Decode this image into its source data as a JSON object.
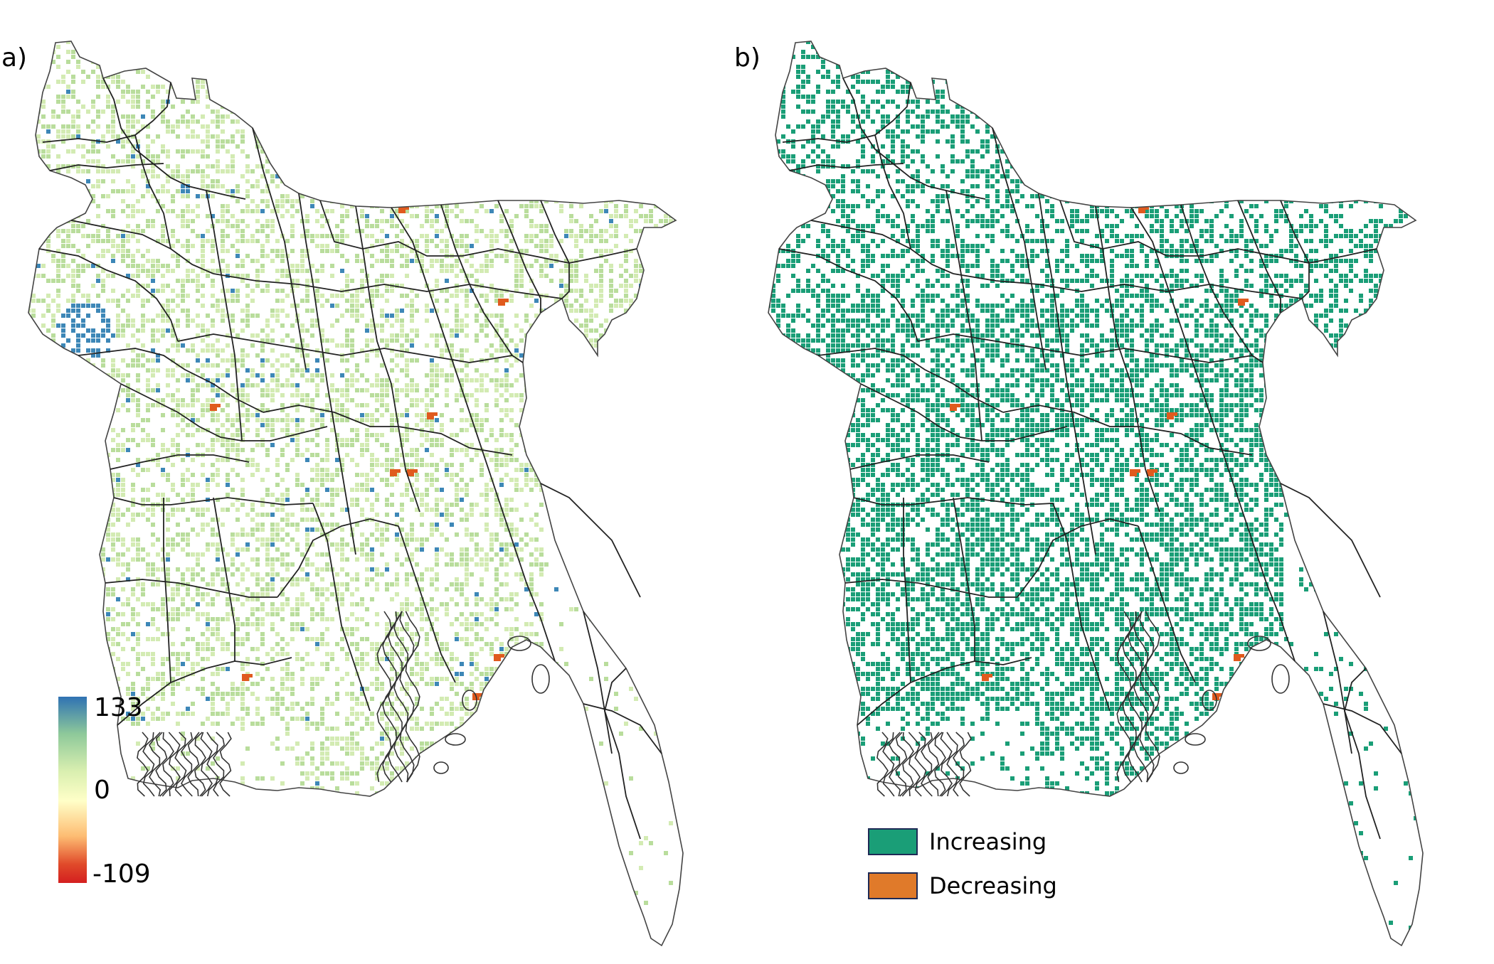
{
  "panels": [
    {
      "label": "a)"
    },
    {
      "label": "b)"
    }
  ],
  "colorbar": {
    "max_label": "133",
    "mid_label": "0",
    "min_label": "-109",
    "colors": [
      "#2f72b3",
      "#8ec99a",
      "#d9efb0",
      "#ffffc8",
      "#fdbc72",
      "#e04a2a",
      "#d41f1f"
    ]
  },
  "legend": {
    "items": [
      {
        "label": "Increasing",
        "color": "#1a9e77"
      },
      {
        "label": "Decreasing",
        "color": "#e07a2a"
      }
    ]
  },
  "map_colors": {
    "a_fill": "#b9dd9c",
    "a_high": "#3d87b7",
    "b_fill": "#1a9e77",
    "decrease": "#e05a1e",
    "boundary": "#333333"
  }
}
